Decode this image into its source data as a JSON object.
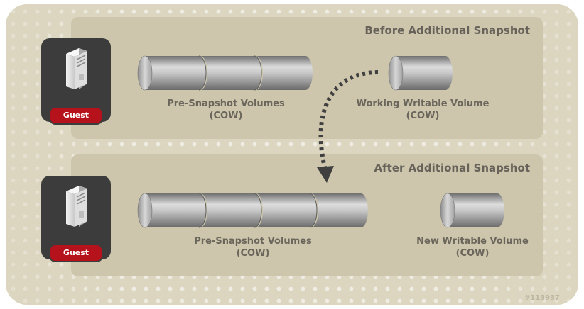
{
  "panels": {
    "before": {
      "title": "Before Additional Snapshot",
      "guest_label": "Guest",
      "pre_snapshot": {
        "line1": "Pre-Snapshot Volumes",
        "line2": "(COW)",
        "volume_count": 3
      },
      "writable": {
        "line1": "Working Writable Volume",
        "line2": "(COW)"
      }
    },
    "after": {
      "title": "After Additional Snapshot",
      "guest_label": "Guest",
      "pre_snapshot": {
        "line1": "Pre-Snapshot Volumes",
        "line2": "(COW)",
        "volume_count": 4
      },
      "writable": {
        "line1": "New Writable Volume",
        "line2": "(COW)"
      }
    }
  },
  "arrow": {
    "style": "dotted",
    "from": "working-writable-volume",
    "to": "pre-snapshot-volumes-after"
  },
  "icons": {
    "guest": "server-tower-icon"
  },
  "colors": {
    "background": "#dcd6c0",
    "panel": "#cdc6ac",
    "guest_card": "#3c3c3c",
    "guest_badge": "#b5121b",
    "label_text": "#6b665c",
    "cylinder_light": "#dcdcdc",
    "cylinder_dark": "#707070"
  },
  "watermark": "#113937"
}
